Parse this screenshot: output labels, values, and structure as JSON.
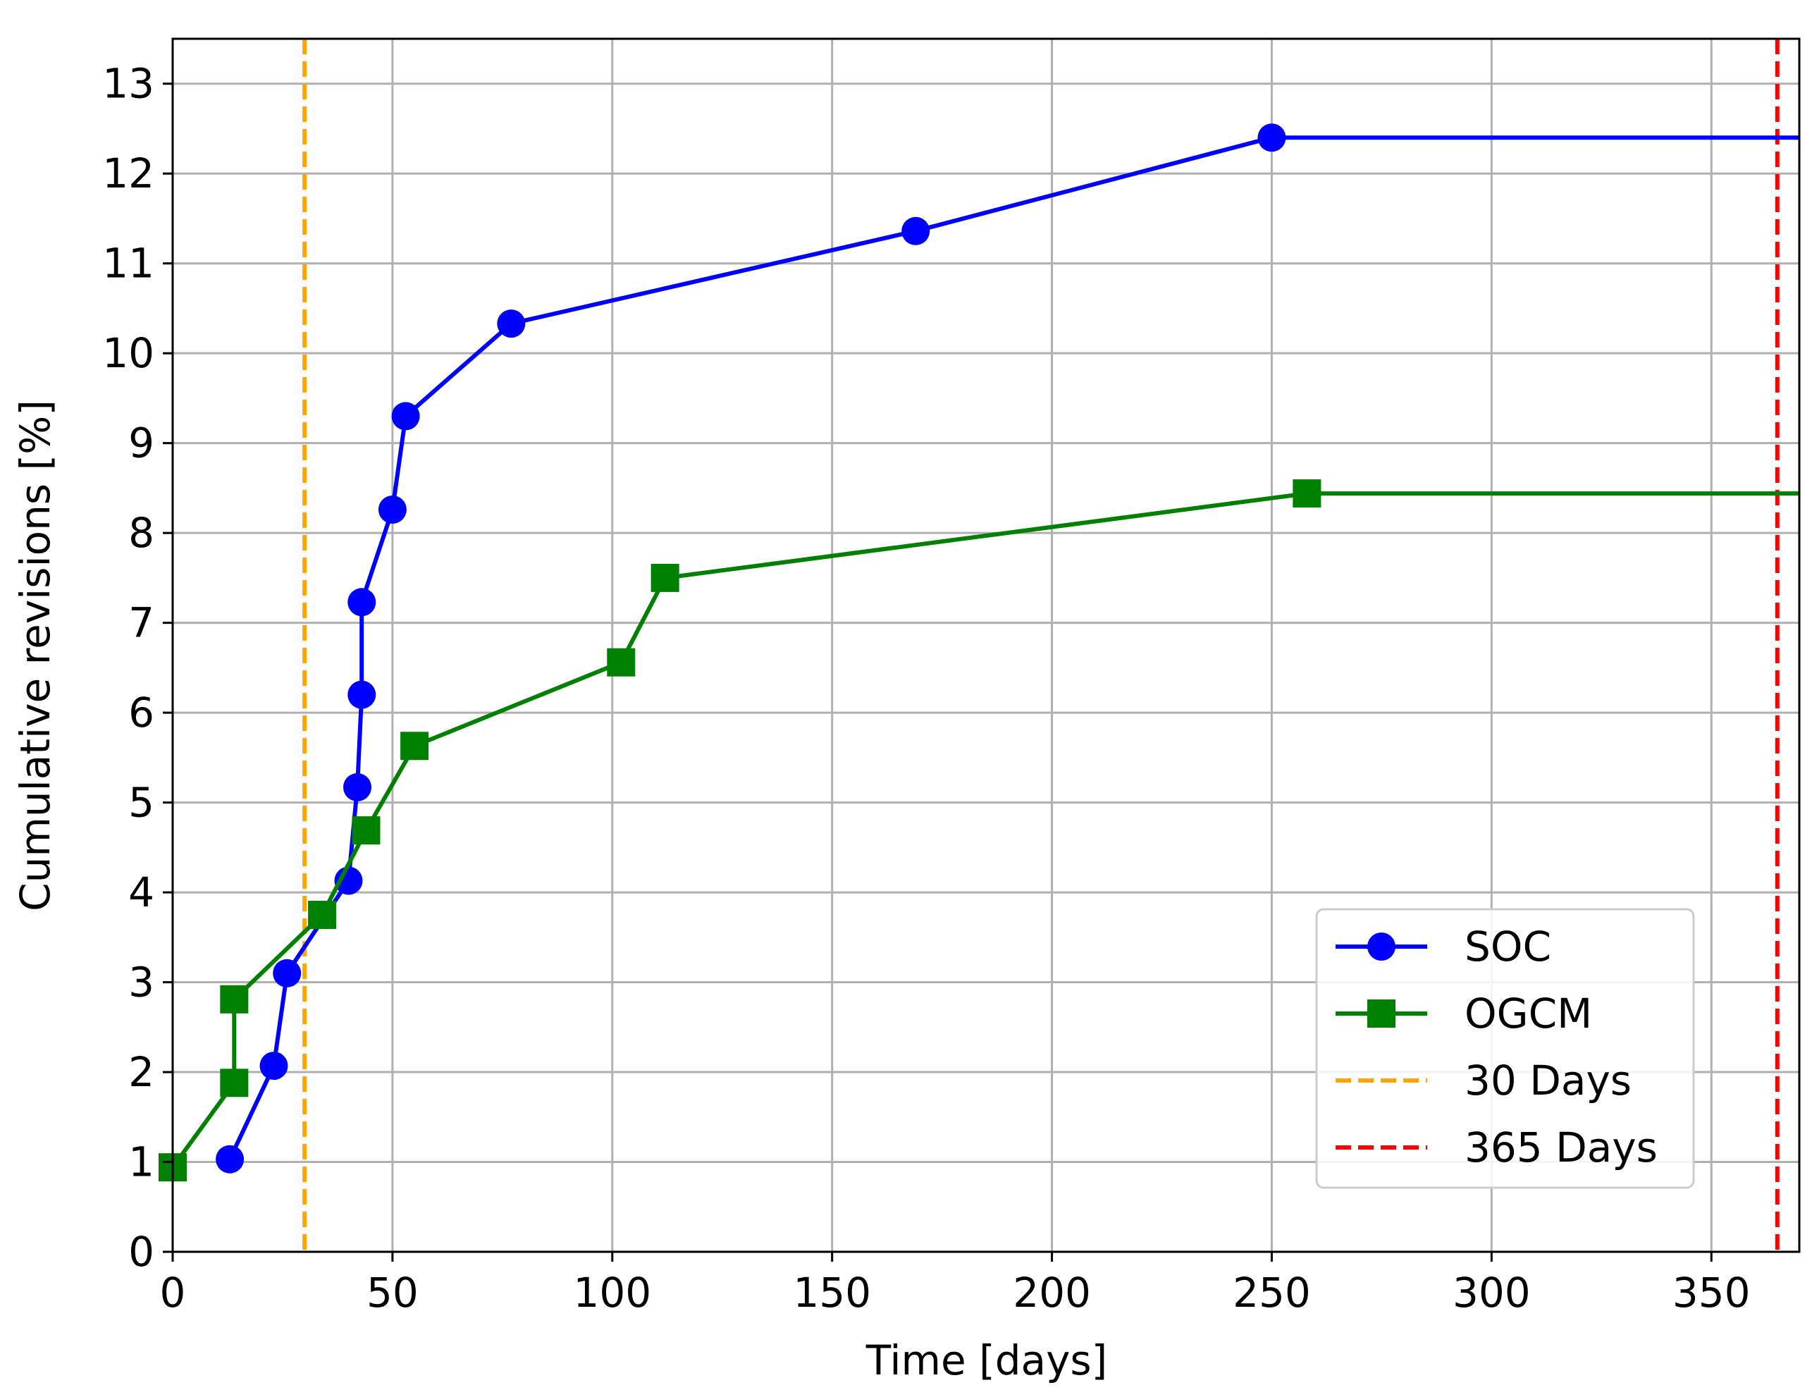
{
  "chart_data": {
    "type": "line",
    "title": "",
    "xlabel": "Time [days]",
    "ylabel": "Cumulative revisions [%]",
    "xlim": [
      0,
      370
    ],
    "ylim": [
      0,
      13.5
    ],
    "xticks": [
      0,
      50,
      100,
      150,
      200,
      250,
      300,
      350
    ],
    "yticks": [
      0,
      1,
      2,
      3,
      4,
      5,
      6,
      7,
      8,
      9,
      10,
      11,
      12,
      13
    ],
    "grid": true,
    "legend_position": "lower-right",
    "series": [
      {
        "name": "SOC",
        "color": "#0000ff",
        "marker": "circle",
        "x": [
          13,
          23,
          26,
          40,
          42,
          43,
          43,
          50,
          53,
          77,
          169,
          250,
          370
        ],
        "y": [
          1.03,
          2.07,
          3.1,
          4.13,
          5.17,
          6.2,
          7.23,
          8.26,
          9.3,
          10.33,
          11.36,
          12.4,
          12.4
        ],
        "marker_count": 12
      },
      {
        "name": "OGCM",
        "color": "#008000",
        "marker": "square",
        "x": [
          0,
          14,
          14,
          34,
          44,
          55,
          102,
          112,
          258,
          370
        ],
        "y": [
          0.94,
          1.88,
          2.81,
          3.75,
          4.69,
          5.63,
          6.56,
          7.5,
          8.44,
          8.44
        ],
        "marker_count": 9
      }
    ],
    "reference_lines": [
      {
        "name": "30 Days",
        "x": 30,
        "color": "#ffa500",
        "style": "dashed"
      },
      {
        "name": "365 Days",
        "x": 365,
        "color": "#ff0000",
        "style": "dashed"
      }
    ]
  }
}
